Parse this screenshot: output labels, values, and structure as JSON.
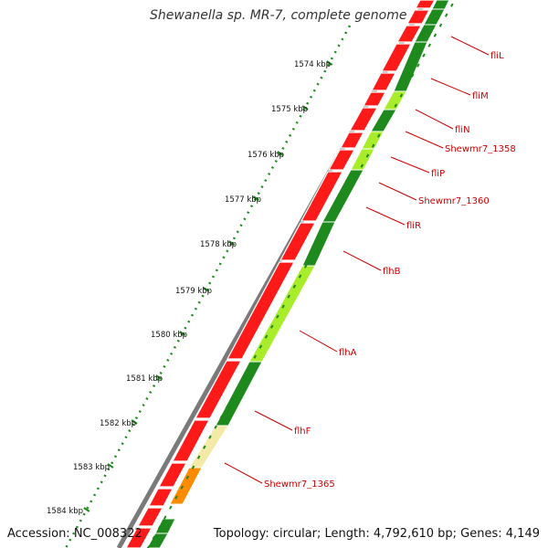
{
  "title": "Shewanella sp. MR-7, complete genome",
  "accession": "Accession: NC_008322",
  "summary": "Topology: circular; Length: 4,792,610 bp; Genes: 4,149",
  "scale_labels": [
    "1574 kbp",
    "1575 kbp",
    "1576 kbp",
    "1577 kbp",
    "1578 kbp",
    "1579 kbp",
    "1580 kbp",
    "1581 kbp",
    "1582 kbp",
    "1583 kbp",
    "1584 kbp"
  ],
  "gene_labels": [
    "fliL",
    "fliM",
    "fliN",
    "Shewmr7_1358",
    "fliP",
    "Shewmr7_1360",
    "fliR",
    "flhB",
    "flhA",
    "flhF",
    "Shewmr7_1365"
  ],
  "colors": {
    "backbone": "#7a7a7a",
    "cds": "#ff1a1a",
    "cog_dark_green": "#1e8a1e",
    "cog_light_green": "#a8ec2a",
    "cog_pale_yellow": "#f2eaa6",
    "cog_orange": "#ff8c00",
    "tick": "#1e8a1e",
    "label": "#cc0000"
  }
}
